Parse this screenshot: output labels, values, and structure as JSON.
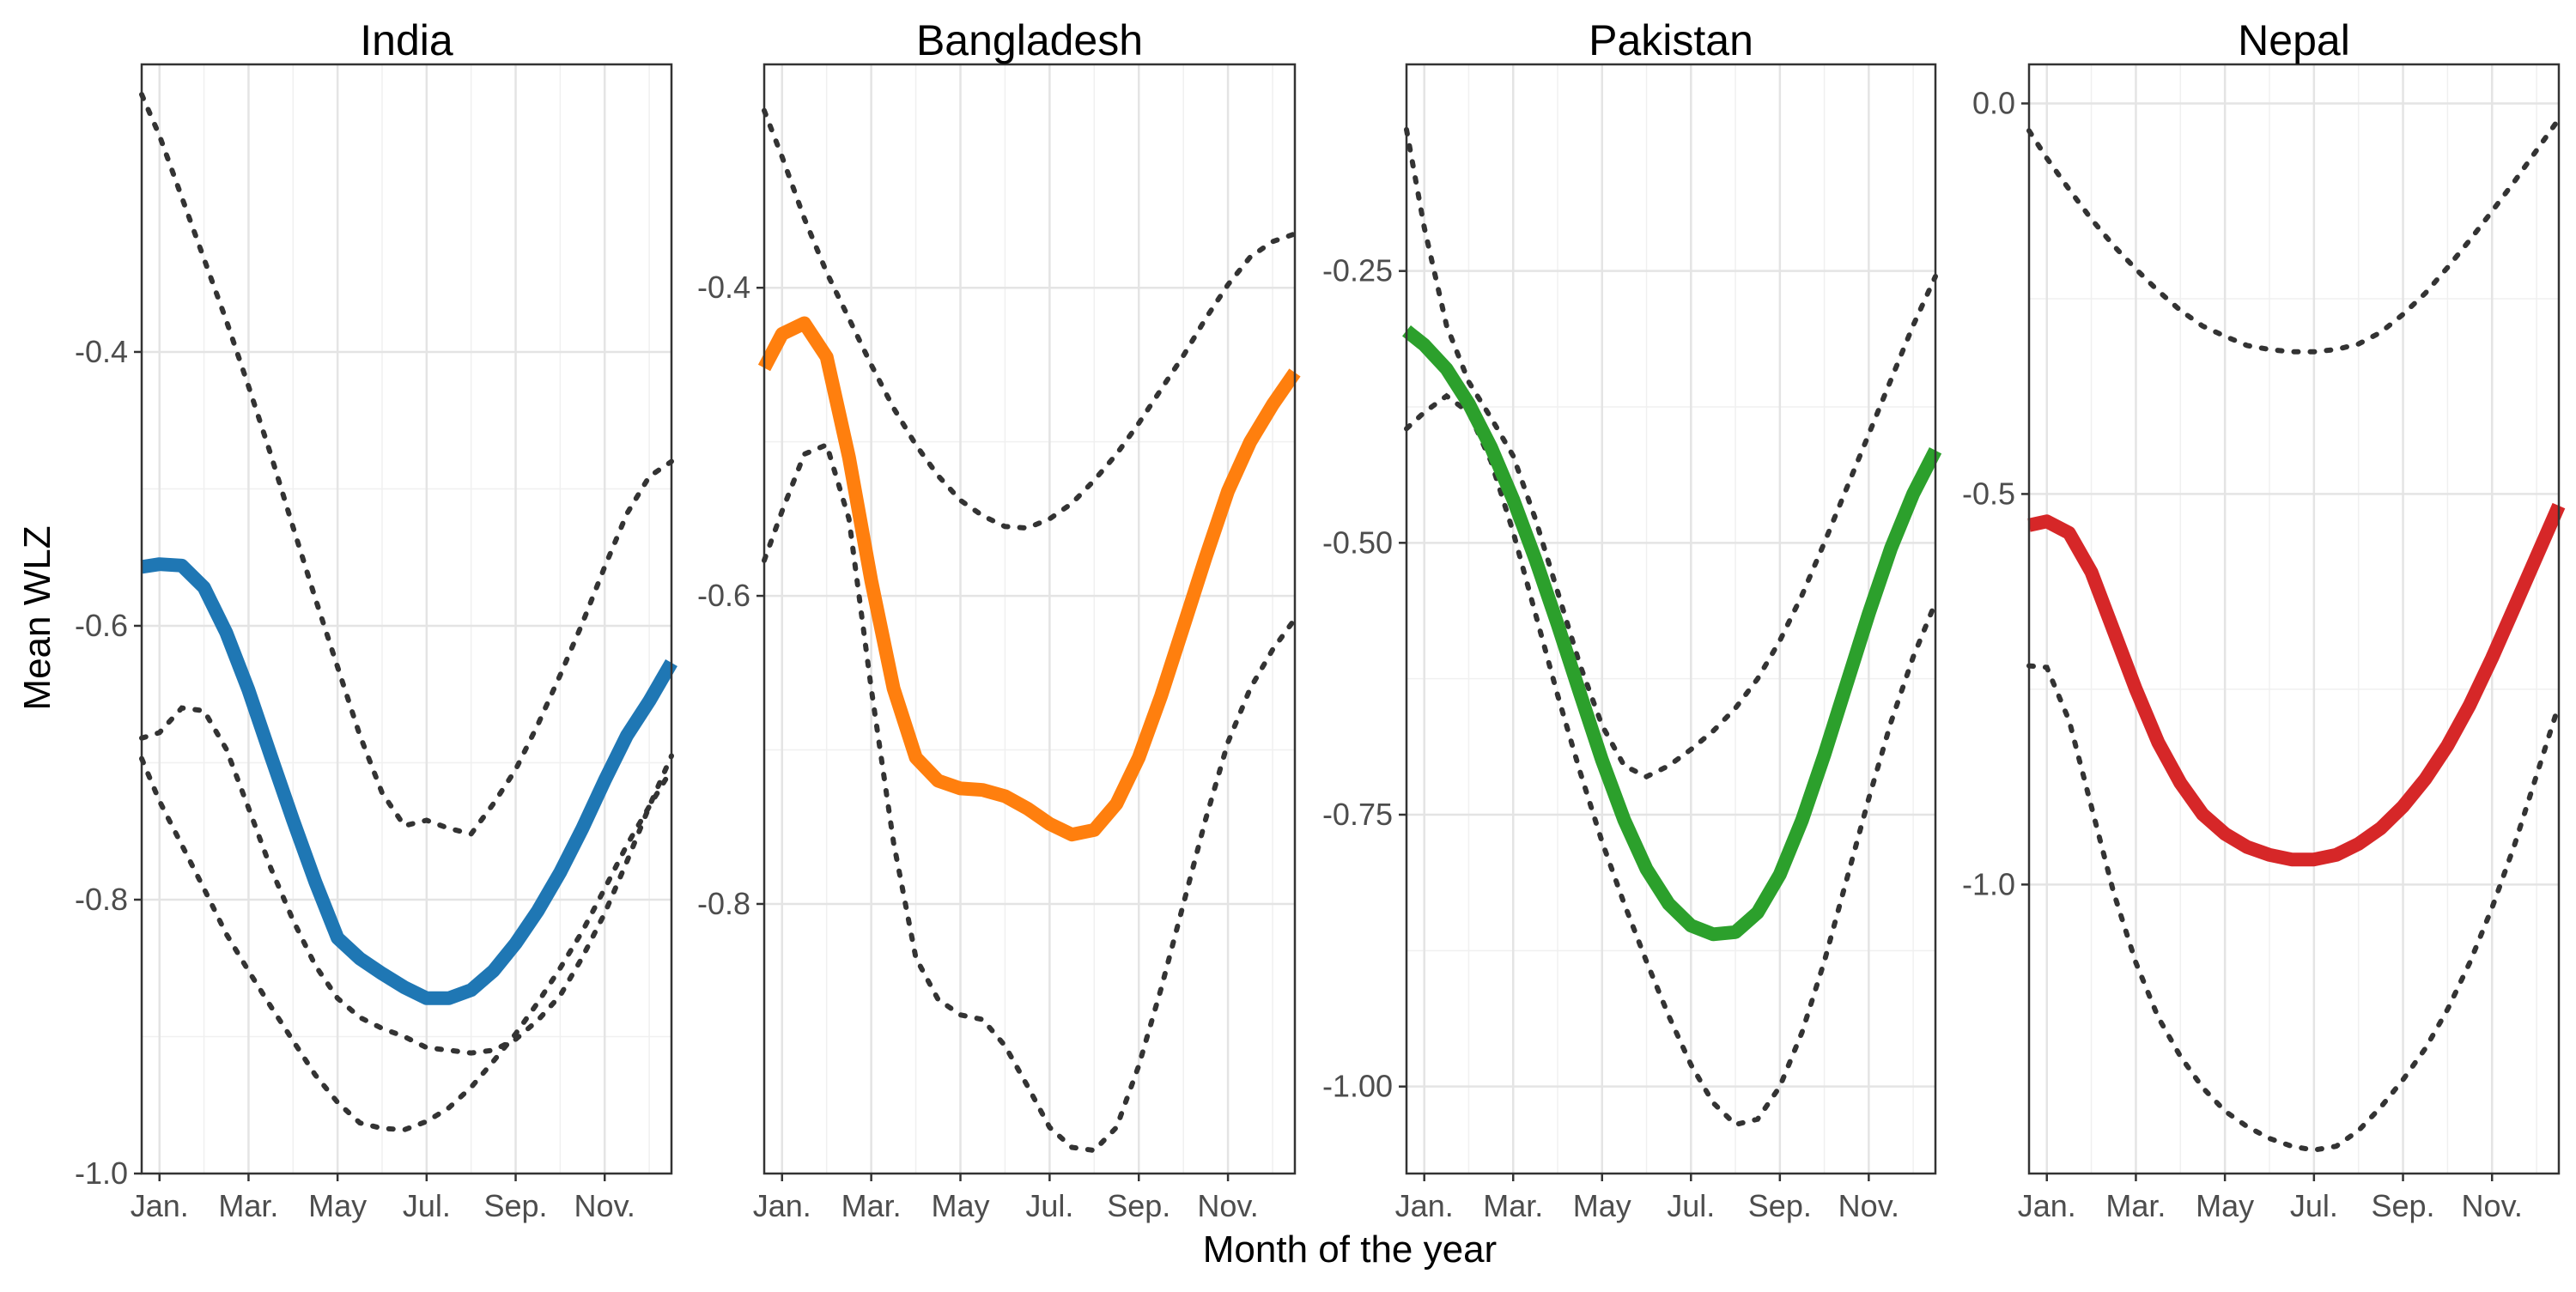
{
  "chart_data": {
    "type": "line",
    "layout": "facets",
    "xlabel": "Month of the year",
    "ylabel": "Mean WLZ",
    "x_ticks": [
      {
        "x": 1,
        "label": "Jan."
      },
      {
        "x": 3,
        "label": "Mar."
      },
      {
        "x": 5,
        "label": "May"
      },
      {
        "x": 7,
        "label": "Jul."
      },
      {
        "x": 9,
        "label": "Sep."
      },
      {
        "x": 11,
        "label": "Nov."
      }
    ],
    "xlim": [
      0.6,
      12.5
    ],
    "grid": true,
    "legend": "none",
    "facets": [
      {
        "title": "India",
        "color": "#1f77b4",
        "ylim": [
          -1.0,
          -0.19
        ],
        "y_ticks": [
          -0.4,
          -0.6,
          -0.8,
          -1.0
        ],
        "y_tick_labels": [
          "-0.4",
          "-0.6",
          "-0.8",
          "-1.0"
        ],
        "x": [
          0.6,
          1,
          1.5,
          2,
          2.5,
          3,
          3.5,
          4,
          4.5,
          5,
          5.5,
          6,
          6.5,
          7,
          7.5,
          8,
          8.5,
          9,
          9.5,
          10,
          10.5,
          11,
          11.5,
          12,
          12.5
        ],
        "mean": [
          -0.557,
          -0.555,
          -0.556,
          -0.572,
          -0.605,
          -0.647,
          -0.695,
          -0.742,
          -0.787,
          -0.828,
          -0.843,
          -0.854,
          -0.864,
          -0.872,
          -0.872,
          -0.866,
          -0.852,
          -0.832,
          -0.808,
          -0.78,
          -0.748,
          -0.713,
          -0.68,
          -0.655,
          -0.627
        ],
        "upper": [
          -0.212,
          -0.242,
          -0.287,
          -0.332,
          -0.377,
          -0.425,
          -0.475,
          -0.528,
          -0.58,
          -0.63,
          -0.68,
          -0.722,
          -0.746,
          -0.742,
          -0.748,
          -0.752,
          -0.73,
          -0.705,
          -0.672,
          -0.636,
          -0.598,
          -0.557,
          -0.518,
          -0.491,
          -0.48
        ],
        "lower": [
          -0.697,
          -0.728,
          -0.76,
          -0.792,
          -0.825,
          -0.852,
          -0.878,
          -0.903,
          -0.928,
          -0.948,
          -0.963,
          -0.967,
          -0.968,
          -0.962,
          -0.952,
          -0.937,
          -0.918,
          -0.898,
          -0.875,
          -0.85,
          -0.823,
          -0.792,
          -0.76,
          -0.732,
          -0.705
        ],
        "lower2": [
          -0.682,
          -0.678,
          -0.66,
          -0.662,
          -0.69,
          -0.733,
          -0.777,
          -0.815,
          -0.848,
          -0.872,
          -0.886,
          -0.894,
          -0.9,
          -0.908,
          -0.91,
          -0.912,
          -0.91,
          -0.902,
          -0.888,
          -0.87,
          -0.842,
          -0.81,
          -0.772,
          -0.732,
          -0.695
        ]
      },
      {
        "title": "Bangladesh",
        "color": "#ff7f0e",
        "ylim": [
          -0.975,
          -0.255
        ],
        "y_ticks": [
          -0.4,
          -0.6,
          -0.8
        ],
        "y_tick_labels": [
          "-0.4",
          "-0.6",
          "-0.8"
        ],
        "x": [
          0.6,
          1,
          1.5,
          2,
          2.5,
          3,
          3.5,
          4,
          4.5,
          5,
          5.5,
          6,
          6.5,
          7,
          7.5,
          8,
          8.5,
          9,
          9.5,
          10,
          10.5,
          11,
          11.5,
          12,
          12.5
        ],
        "mean": [
          -0.452,
          -0.43,
          -0.423,
          -0.445,
          -0.51,
          -0.59,
          -0.66,
          -0.705,
          -0.72,
          -0.725,
          -0.726,
          -0.73,
          -0.738,
          -0.748,
          -0.755,
          -0.752,
          -0.735,
          -0.705,
          -0.665,
          -0.62,
          -0.575,
          -0.532,
          -0.5,
          -0.476,
          -0.455
        ],
        "upper": [
          -0.285,
          -0.315,
          -0.355,
          -0.39,
          -0.42,
          -0.45,
          -0.478,
          -0.502,
          -0.522,
          -0.538,
          -0.548,
          -0.555,
          -0.556,
          -0.55,
          -0.54,
          -0.525,
          -0.508,
          -0.488,
          -0.466,
          -0.444,
          -0.42,
          -0.398,
          -0.38,
          -0.37,
          -0.365
        ],
        "lower": [
          -0.577,
          -0.545,
          -0.508,
          -0.502,
          -0.55,
          -0.66,
          -0.76,
          -0.835,
          -0.862,
          -0.872,
          -0.875,
          -0.892,
          -0.918,
          -0.945,
          -0.958,
          -0.96,
          -0.945,
          -0.905,
          -0.855,
          -0.8,
          -0.745,
          -0.695,
          -0.66,
          -0.635,
          -0.615
        ]
      },
      {
        "title": "Pakistan",
        "color": "#2ca02c",
        "ylim": [
          -1.08,
          -0.06
        ],
        "y_ticks": [
          -0.25,
          -0.5,
          -0.75,
          -1.0
        ],
        "y_tick_labels": [
          "-0.25",
          "-0.50",
          "-0.75",
          "-1.00"
        ],
        "x": [
          0.6,
          1,
          1.5,
          2,
          2.5,
          3,
          3.5,
          4,
          4.5,
          5,
          5.5,
          6,
          6.5,
          7,
          7.5,
          8,
          8.5,
          9,
          9.5,
          10,
          10.5,
          11,
          11.5,
          12,
          12.5
        ],
        "mean": [
          -0.305,
          -0.318,
          -0.34,
          -0.372,
          -0.412,
          -0.46,
          -0.515,
          -0.575,
          -0.638,
          -0.7,
          -0.755,
          -0.8,
          -0.832,
          -0.852,
          -0.86,
          -0.858,
          -0.84,
          -0.805,
          -0.755,
          -0.695,
          -0.63,
          -0.565,
          -0.505,
          -0.455,
          -0.415
        ],
        "upper": [
          -0.12,
          -0.21,
          -0.3,
          -0.352,
          -0.385,
          -0.42,
          -0.478,
          -0.545,
          -0.612,
          -0.668,
          -0.705,
          -0.715,
          -0.705,
          -0.69,
          -0.673,
          -0.652,
          -0.625,
          -0.59,
          -0.548,
          -0.5,
          -0.45,
          -0.4,
          -0.35,
          -0.3,
          -0.255
        ],
        "lower": [
          -0.395,
          -0.38,
          -0.365,
          -0.38,
          -0.425,
          -0.49,
          -0.565,
          -0.64,
          -0.71,
          -0.775,
          -0.832,
          -0.885,
          -0.935,
          -0.98,
          -1.015,
          -1.035,
          -1.03,
          -1.0,
          -0.95,
          -0.885,
          -0.81,
          -0.735,
          -0.665,
          -0.605,
          -0.555
        ]
      },
      {
        "title": "Nepal",
        "color": "#d62728",
        "ylim": [
          -1.37,
          0.05
        ],
        "y_ticks": [
          0.0,
          -0.5,
          -1.0
        ],
        "y_tick_labels": [
          "0.0",
          "-0.5",
          "-1.0"
        ],
        "x": [
          0.6,
          1,
          1.5,
          2,
          2.5,
          3,
          3.5,
          4,
          4.5,
          5,
          5.5,
          6,
          6.5,
          7,
          7.5,
          8,
          8.5,
          9,
          9.5,
          10,
          10.5,
          11,
          11.5,
          12,
          12.5
        ],
        "mean": [
          -0.54,
          -0.535,
          -0.55,
          -0.6,
          -0.675,
          -0.75,
          -0.818,
          -0.87,
          -0.91,
          -0.935,
          -0.952,
          -0.962,
          -0.968,
          -0.968,
          -0.962,
          -0.948,
          -0.928,
          -0.9,
          -0.865,
          -0.822,
          -0.77,
          -0.71,
          -0.645,
          -0.58,
          -0.515
        ],
        "upper": [
          -0.035,
          -0.07,
          -0.11,
          -0.148,
          -0.182,
          -0.212,
          -0.24,
          -0.265,
          -0.285,
          -0.298,
          -0.31,
          -0.315,
          -0.318,
          -0.318,
          -0.315,
          -0.308,
          -0.293,
          -0.27,
          -0.243,
          -0.21,
          -0.175,
          -0.138,
          -0.1,
          -0.06,
          -0.02
        ],
        "lower": [
          -0.72,
          -0.722,
          -0.79,
          -0.9,
          -1.01,
          -1.1,
          -1.17,
          -1.22,
          -1.26,
          -1.29,
          -1.31,
          -1.325,
          -1.335,
          -1.34,
          -1.335,
          -1.315,
          -1.285,
          -1.25,
          -1.21,
          -1.16,
          -1.1,
          -1.03,
          -0.95,
          -0.86,
          -0.77
        ]
      }
    ]
  }
}
